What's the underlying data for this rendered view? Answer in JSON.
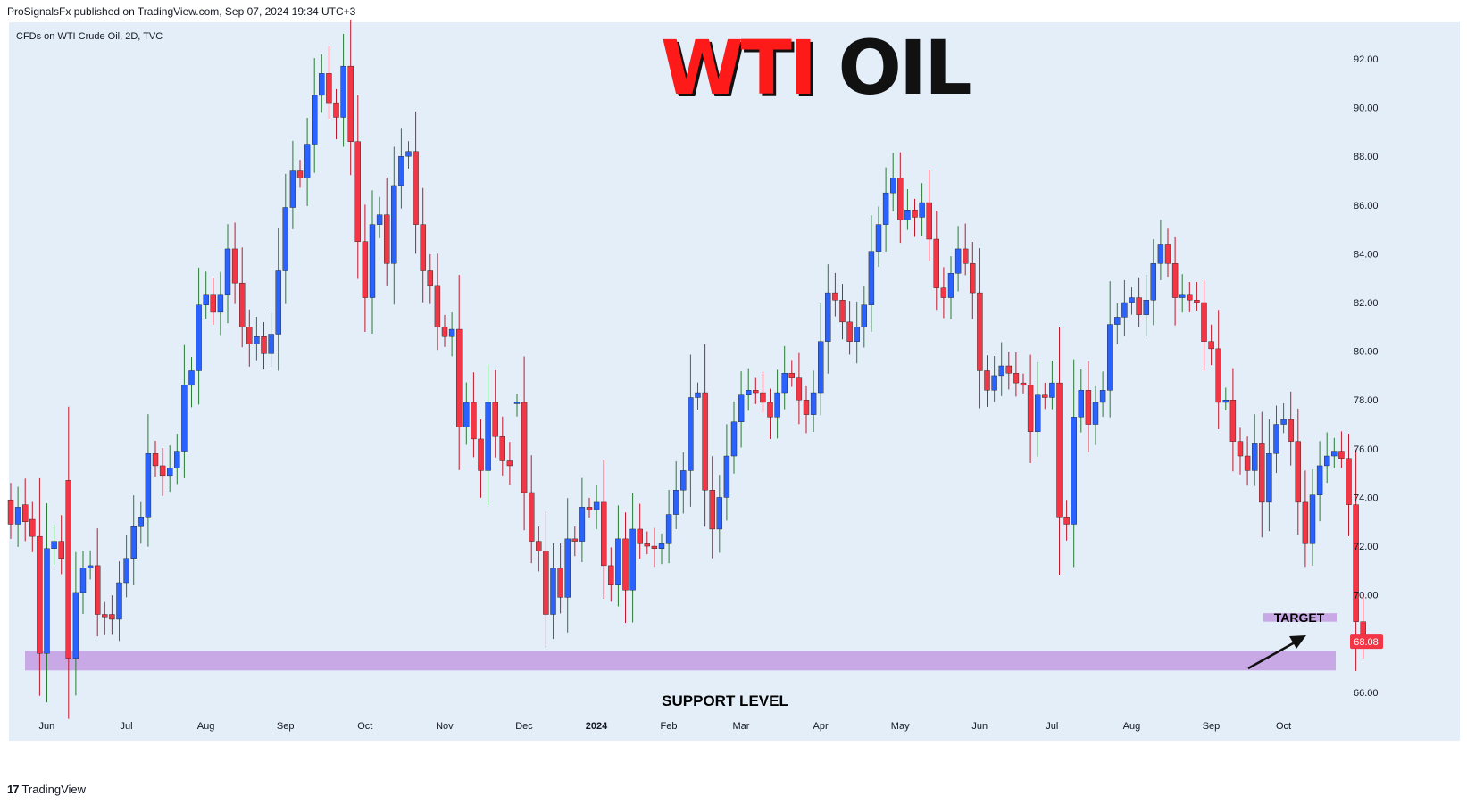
{
  "header": {
    "published": "ProSignalsFx published on TradingView.com, Sep 07, 2024 19:34 UTC+3"
  },
  "footer": {
    "brand": "TradingView",
    "logo_icon": "tradingview-logo-icon"
  },
  "chart_data": {
    "type": "candlestick",
    "symbol_label": "CFDs on WTI Crude Oil, 2D, TVC",
    "title_parts": [
      "WTI",
      "OIL"
    ],
    "title_colors": [
      "#ff1a1a",
      "#111111"
    ],
    "colors": {
      "up": "#2962ff",
      "down": "#f23645",
      "support": "#c8a9e6",
      "price_tag": "#f23645"
    },
    "y_ticks": [
      "66.00",
      "68.00",
      "70.00",
      "72.00",
      "74.00",
      "76.00",
      "78.00",
      "80.00",
      "82.00",
      "84.00",
      "86.00",
      "88.00",
      "90.00",
      "92.00"
    ],
    "x_ticks": [
      "Jun",
      "Jul",
      "Aug",
      "Sep",
      "Oct",
      "Nov",
      "Dec",
      "2024",
      "Feb",
      "Mar",
      "Apr",
      "May",
      "Jun",
      "Jul",
      "Aug",
      "Sep",
      "Oct"
    ],
    "last_price": "68.08",
    "annotations": {
      "support": "SUPPORT LEVEL",
      "target": "TARGET"
    },
    "support_zone": [
      66.9,
      67.7
    ],
    "target_zone": [
      68.9,
      69.25
    ],
    "closes": [
      72.9,
      73.6,
      73.0,
      72.4,
      67.6,
      71.9,
      72.2,
      71.5,
      67.4,
      70.1,
      71.1,
      71.2,
      69.2,
      69.1,
      69.0,
      70.5,
      71.5,
      72.8,
      73.2,
      75.8,
      75.3,
      74.9,
      75.2,
      75.9,
      78.6,
      79.2,
      81.9,
      82.3,
      81.6,
      82.3,
      84.2,
      82.8,
      81.0,
      80.3,
      80.6,
      79.9,
      80.7,
      83.3,
      85.9,
      87.4,
      87.1,
      88.5,
      90.5,
      91.4,
      90.2,
      89.6,
      91.7,
      88.6,
      84.5,
      82.2,
      85.2,
      85.6,
      83.6,
      86.8,
      88.0,
      88.2,
      85.2,
      83.3,
      82.7,
      81.0,
      80.6,
      80.9,
      76.9,
      77.9,
      76.4,
      75.1,
      77.9,
      76.5,
      75.5,
      75.3,
      77.9,
      74.2,
      72.2,
      71.8,
      69.2,
      71.1,
      69.9,
      72.3,
      72.2,
      73.6,
      73.5,
      73.8,
      71.2,
      70.4,
      72.3,
      70.2,
      72.7,
      72.1,
      72.0,
      71.9,
      72.1,
      73.3,
      74.3,
      75.1,
      78.1,
      78.3,
      74.3,
      72.7,
      74.0,
      75.7,
      77.1,
      78.2,
      78.4,
      78.3,
      77.9,
      77.3,
      78.3,
      79.1,
      78.9,
      78.0,
      77.4,
      78.3,
      80.4,
      82.4,
      82.1,
      81.2,
      80.4,
      81.0,
      81.9,
      84.1,
      85.2,
      86.5,
      87.1,
      85.4,
      85.8,
      85.5,
      86.1,
      84.6,
      82.6,
      82.2,
      83.2,
      84.2,
      83.6,
      82.4,
      79.2,
      78.4,
      79.0,
      79.4,
      79.1,
      78.7,
      78.6,
      76.7,
      78.2,
      78.1,
      78.7,
      73.2,
      72.9,
      77.3,
      78.4,
      77.0,
      77.9,
      78.4,
      81.1,
      81.4,
      82.0,
      82.2,
      81.5,
      82.1,
      83.6,
      84.4,
      83.6,
      82.2,
      82.3,
      82.1,
      82.0,
      80.4,
      80.1,
      77.9,
      78.0,
      76.3,
      75.7,
      75.1,
      76.2,
      73.8,
      75.8,
      77.0,
      77.2,
      76.3,
      73.8,
      72.1,
      74.1,
      75.3,
      75.7,
      75.9,
      75.6,
      73.7,
      68.9,
      68.08
    ],
    "opens": [
      73.9,
      72.9,
      73.7,
      73.1,
      72.4,
      67.6,
      71.9,
      72.2,
      74.7,
      67.4,
      70.1,
      71.1,
      71.2,
      69.2,
      69.2,
      69.0,
      70.5,
      71.5,
      72.8,
      73.2,
      75.8,
      75.3,
      74.9,
      75.2,
      75.9,
      78.6,
      79.2,
      81.9,
      82.3,
      81.6,
      82.3,
      84.2,
      82.8,
      81.0,
      80.3,
      80.6,
      79.9,
      80.7,
      83.3,
      85.9,
      87.4,
      87.1,
      88.5,
      90.5,
      91.4,
      90.2,
      89.6,
      91.7,
      88.6,
      84.5,
      82.2,
      85.2,
      85.6,
      83.6,
      86.8,
      88.0,
      88.2,
      85.2,
      83.3,
      82.7,
      81.0,
      80.6,
      80.9,
      76.9,
      77.9,
      76.4,
      75.1,
      77.9,
      76.5,
      75.5,
      77.9,
      77.9,
      74.2,
      72.2,
      71.8,
      69.2,
      71.1,
      69.9,
      72.3,
      72.2,
      73.6,
      73.5,
      73.8,
      71.2,
      70.4,
      72.3,
      70.2,
      72.7,
      72.1,
      72.0,
      71.9,
      72.1,
      73.3,
      74.3,
      75.1,
      78.1,
      78.3,
      74.3,
      72.7,
      74.0,
      75.7,
      77.1,
      78.2,
      78.4,
      78.3,
      77.9,
      77.3,
      78.3,
      79.1,
      78.9,
      78.0,
      77.4,
      78.3,
      80.4,
      82.4,
      82.1,
      81.2,
      80.4,
      81.0,
      81.9,
      84.1,
      85.2,
      86.5,
      87.1,
      85.4,
      85.8,
      85.5,
      86.1,
      84.6,
      82.6,
      82.2,
      83.2,
      84.2,
      83.6,
      82.4,
      79.2,
      78.4,
      79.0,
      79.4,
      79.1,
      78.7,
      78.6,
      76.7,
      78.2,
      78.1,
      78.7,
      73.2,
      72.9,
      77.3,
      78.4,
      77.0,
      77.9,
      78.4,
      81.1,
      81.4,
      82.0,
      82.2,
      81.5,
      82.1,
      83.6,
      84.4,
      83.6,
      82.2,
      82.3,
      82.1,
      82.0,
      80.4,
      80.1,
      77.9,
      78.0,
      76.3,
      75.7,
      75.1,
      76.2,
      73.8,
      75.8,
      77.0,
      77.2,
      76.3,
      73.8,
      72.1,
      74.1,
      75.3,
      75.7,
      75.9,
      75.6,
      73.7,
      68.9
    ],
    "x_tick_candle_index": [
      4,
      15,
      26,
      37,
      48,
      59,
      70,
      80,
      90,
      100,
      111,
      122,
      133,
      143,
      154,
      165,
      175
    ],
    "price_range": [
      65.3,
      93.5
    ]
  }
}
